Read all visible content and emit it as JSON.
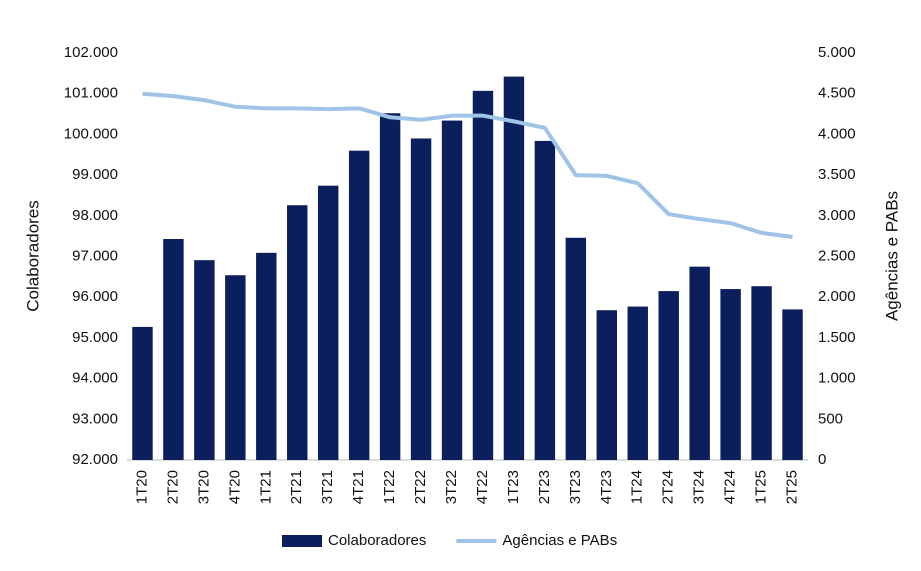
{
  "chart_data": {
    "type": "bar",
    "categories": [
      "1T20",
      "2T20",
      "3T20",
      "4T20",
      "1T21",
      "2T21",
      "3T21",
      "4T21",
      "1T22",
      "2T22",
      "3T22",
      "4T22",
      "1T23",
      "2T23",
      "3T23",
      "4T23",
      "1T24",
      "2T24",
      "3T24",
      "4T24",
      "1T25",
      "2T25"
    ],
    "series": [
      {
        "name": "Colaboradores",
        "type": "bar",
        "color": "#0b1f5c",
        "values": [
          95270,
          97430,
          96910,
          96540,
          97090,
          98260,
          98740,
          99600,
          100520,
          99900,
          100340,
          101070,
          101420,
          99840,
          97460,
          95680,
          95770,
          96150,
          96750,
          96200,
          96270,
          95700
        ]
      },
      {
        "name": "Agências e PABs",
        "type": "line",
        "axis": "y2",
        "color": "#9fc4e8",
        "values": [
          4500,
          4470,
          4420,
          4340,
          4320,
          4320,
          4310,
          4320,
          4210,
          4180,
          4230,
          4230,
          4160,
          4080,
          3500,
          3490,
          3400,
          3020,
          2960,
          2910,
          2790,
          2740
        ]
      }
    ],
    "ylabel": "Colaboradores",
    "y2label": "Agências e PABs",
    "ylim": [
      92000,
      102000
    ],
    "yticks": [
      {
        "value": 92000,
        "label": "92.000"
      },
      {
        "value": 93000,
        "label": "93.000"
      },
      {
        "value": 94000,
        "label": "94.000"
      },
      {
        "value": 95000,
        "label": "95.000"
      },
      {
        "value": 96000,
        "label": "96.000"
      },
      {
        "value": 97000,
        "label": "97.000"
      },
      {
        "value": 98000,
        "label": "98.000"
      },
      {
        "value": 99000,
        "label": "99.000"
      },
      {
        "value": 100000,
        "label": "100.000"
      },
      {
        "value": 101000,
        "label": "101.000"
      },
      {
        "value": 102000,
        "label": "102.000"
      }
    ],
    "y2lim": [
      0,
      5000
    ],
    "y2ticks": [
      0,
      500,
      {
        "value": 1000,
        "label": "1.000"
      },
      {
        "value": 1500,
        "label": "1.500"
      },
      {
        "value": 2000,
        "label": "2.000"
      },
      {
        "value": 2500,
        "label": "2.500"
      },
      {
        "value": 3000,
        "label": "3.000"
      },
      {
        "value": 3500,
        "label": "3.500"
      },
      {
        "value": 4000,
        "label": "4.000"
      },
      {
        "value": 4500,
        "label": "4.500"
      },
      {
        "value": 5000,
        "label": "5.000"
      }
    ],
    "grid": false,
    "legend": "bottom"
  }
}
